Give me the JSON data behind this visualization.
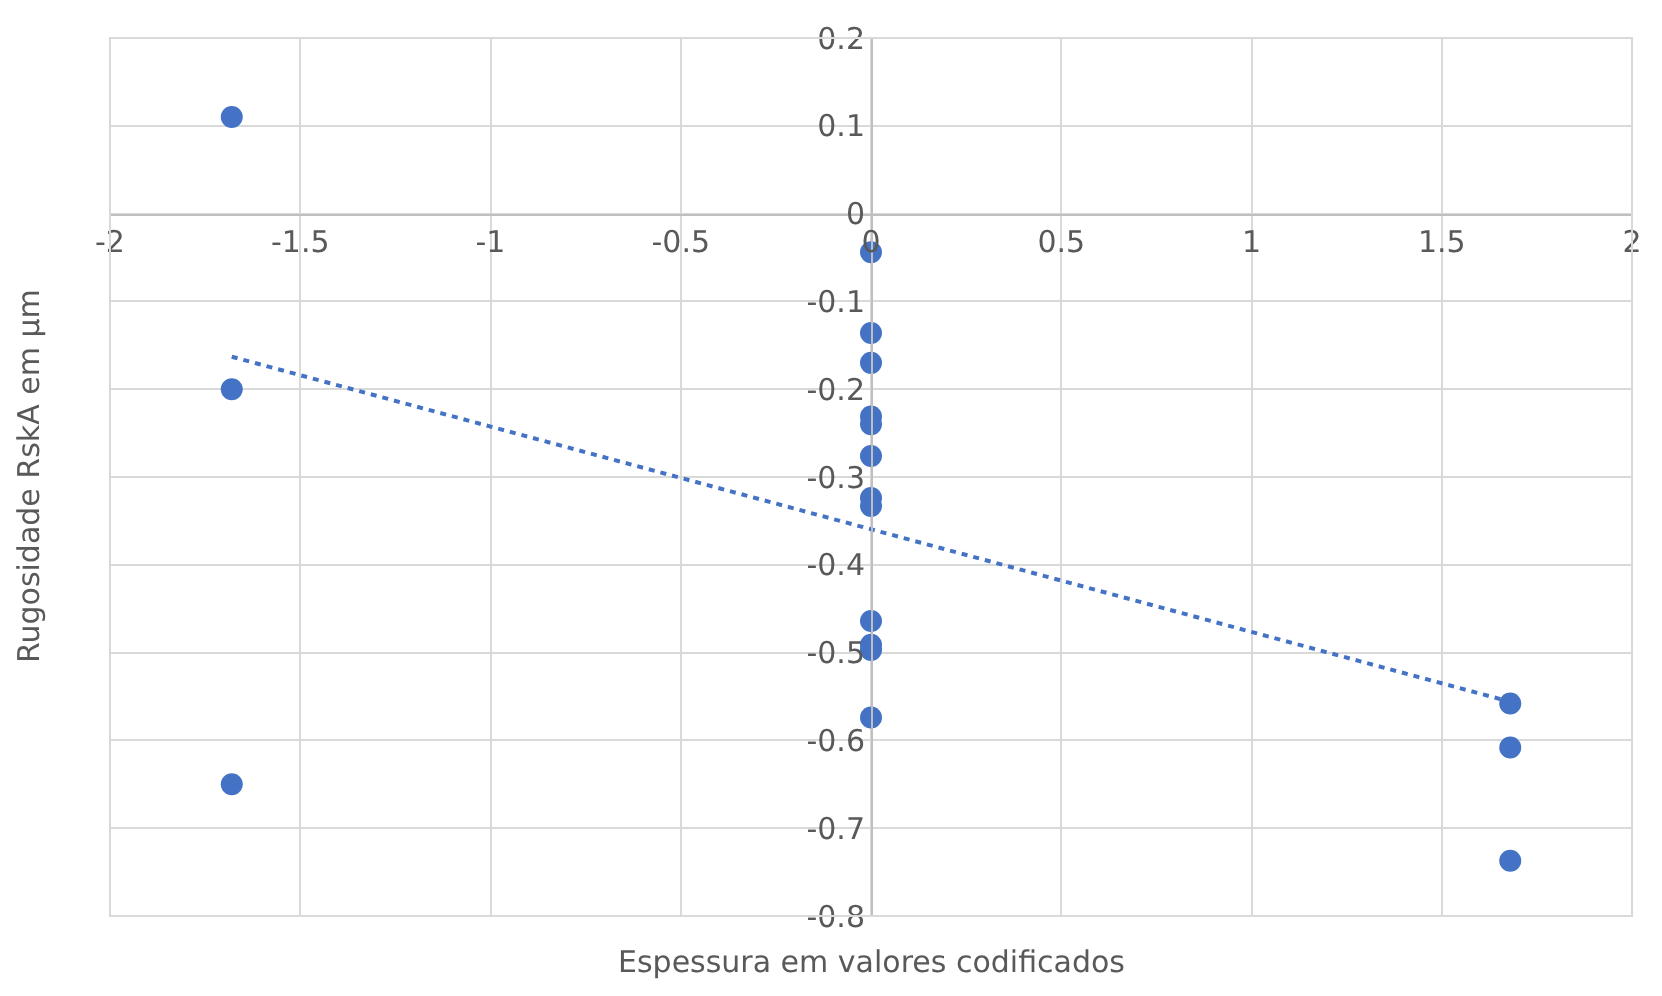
{
  "chart_data": {
    "type": "scatter",
    "xlabel": "Espessura em valores codificados",
    "ylabel": "Rugosidade RskA em μm",
    "xlim": [
      -2,
      2
    ],
    "xticks": [
      -2,
      -1.5,
      -1,
      -0.5,
      0,
      0.5,
      1,
      1.5,
      2
    ],
    "ylim": [
      -0.8,
      0.2
    ],
    "yticks": [
      -0.8,
      -0.7,
      -0.6,
      -0.5,
      -0.4,
      -0.3,
      -0.2,
      -0.1,
      0,
      0.1,
      0.2
    ],
    "grid": true,
    "marker": "circle",
    "series": [
      {
        "color": "#4472c4",
        "x": [
          -1.68,
          -1.68,
          -1.68,
          0,
          0,
          0,
          0,
          0,
          0,
          0,
          0,
          0,
          0,
          0,
          0,
          1.68,
          1.68,
          1.68
        ],
        "values": [
          0.11,
          -0.2,
          -0.65,
          -0.044,
          -0.136,
          -0.17,
          -0.231,
          -0.24,
          -0.276,
          -0.324,
          -0.333,
          -0.464,
          -0.491,
          -0.497,
          -0.574,
          -0.558,
          -0.608,
          -0.737
        ]
      },
      {
        "type": "line",
        "color": "#4472c4",
        "line_style": "dotted",
        "marker": "none",
        "x": [
          -1.68,
          1.68
        ],
        "values": [
          -0.163,
          -0.556
        ]
      }
    ]
  }
}
